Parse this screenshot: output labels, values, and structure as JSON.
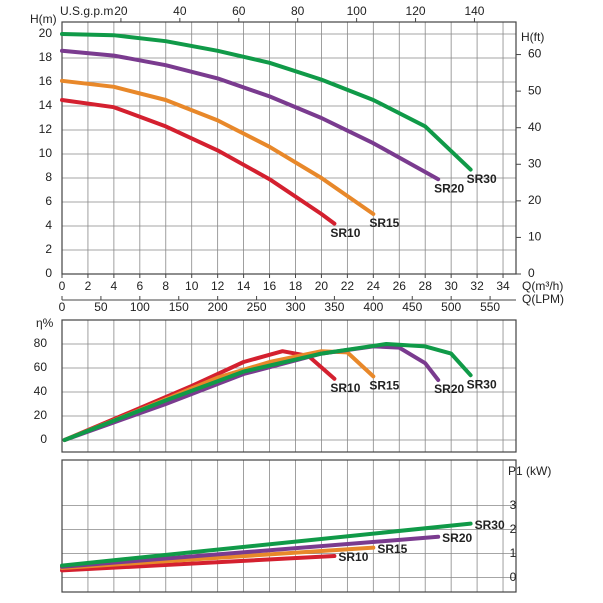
{
  "chart_data": [
    {
      "type": "line",
      "ylabel": "H(m)",
      "y2label": "H(ft)",
      "xlabel": "Q(m³/h)",
      "x2label": "U.S.g.p.m",
      "x3label": "Q(LPM)",
      "xlim": [
        0,
        35
      ],
      "xticks": [
        0,
        2,
        4,
        6,
        8,
        10,
        12,
        14,
        16,
        18,
        20,
        22,
        24,
        26,
        28,
        30,
        32,
        34
      ],
      "x2lim": [
        0,
        154.1
      ],
      "x2ticks": [
        20,
        40,
        60,
        80,
        100,
        120,
        140
      ],
      "x3lim": [
        0,
        583.3
      ],
      "x3ticks": [
        0,
        50,
        100,
        150,
        200,
        250,
        300,
        350,
        400,
        450,
        500,
        550
      ],
      "ylim": [
        0,
        21
      ],
      "yticks": [
        0,
        2,
        4,
        6,
        8,
        10,
        12,
        14,
        16,
        18,
        20
      ],
      "y2lim": [
        0,
        68.9
      ],
      "y2ticks": [
        0,
        10,
        20,
        30,
        40,
        50,
        60
      ],
      "grid": true,
      "series": [
        {
          "name": "SR10",
          "color": "#d4202f",
          "x": [
            0,
            4,
            8,
            12,
            16,
            20,
            21
          ],
          "values": [
            14.5,
            13.9,
            12.3,
            10.3,
            7.9,
            5.0,
            4.2
          ]
        },
        {
          "name": "SR15",
          "color": "#e8882a",
          "x": [
            0,
            4,
            8,
            12,
            16,
            20,
            24
          ],
          "values": [
            16.1,
            15.6,
            14.5,
            12.8,
            10.6,
            8.0,
            5.0
          ]
        },
        {
          "name": "SR20",
          "color": "#7a3b8f",
          "x": [
            0,
            4,
            8,
            12,
            16,
            20,
            24,
            28,
            29
          ],
          "values": [
            18.6,
            18.2,
            17.4,
            16.3,
            14.8,
            13.0,
            10.9,
            8.5,
            7.9
          ]
        },
        {
          "name": "SR30",
          "color": "#109a48",
          "x": [
            0,
            4,
            8,
            12,
            16,
            20,
            24,
            28,
            31.5
          ],
          "values": [
            20.0,
            19.9,
            19.4,
            18.6,
            17.6,
            16.2,
            14.5,
            12.3,
            8.7
          ]
        }
      ]
    },
    {
      "type": "line",
      "ylabel": "η%",
      "xlim": [
        0,
        35
      ],
      "xticks": [
        0,
        2,
        4,
        6,
        8,
        10,
        12,
        14,
        16,
        18,
        20,
        22,
        24,
        26,
        28,
        30,
        32,
        34
      ],
      "ylim": [
        -10,
        100
      ],
      "yticks": [
        0,
        20,
        40,
        60,
        80
      ],
      "grid": true,
      "series": [
        {
          "name": "SR10",
          "color": "#d4202f",
          "x": [
            0.2,
            5,
            10,
            14,
            17,
            19,
            21
          ],
          "values": [
            0,
            22,
            45,
            65,
            74,
            70,
            51
          ]
        },
        {
          "name": "SR15",
          "color": "#e8882a",
          "x": [
            0.2,
            6,
            12,
            16,
            20,
            22,
            24
          ],
          "values": [
            0,
            25,
            52,
            65,
            74,
            73,
            53
          ]
        },
        {
          "name": "SR20",
          "color": "#7a3b8f",
          "x": [
            0.2,
            8,
            14,
            20,
            24,
            26,
            28,
            29
          ],
          "values": [
            0,
            30,
            55,
            72,
            78,
            77,
            64,
            50
          ]
        },
        {
          "name": "SR30",
          "color": "#109a48",
          "x": [
            0.2,
            8,
            14,
            20,
            25,
            28,
            30,
            31.5
          ],
          "values": [
            0,
            33,
            57,
            72,
            80,
            78,
            72,
            54
          ]
        }
      ]
    },
    {
      "type": "line",
      "ylabel": "P1 (kW)",
      "xlim": [
        0,
        35
      ],
      "xticks": [
        0,
        2,
        4,
        6,
        8,
        10,
        12,
        14,
        16,
        18,
        20,
        22,
        24,
        26,
        28,
        30,
        32,
        34
      ],
      "ylim": [
        -0.6,
        4.9
      ],
      "yticks": [
        0,
        1,
        2,
        3
      ],
      "grid": true,
      "series": [
        {
          "name": "SR10",
          "color": "#d4202f",
          "x": [
            0,
            21
          ],
          "values": [
            0.3,
            0.9
          ]
        },
        {
          "name": "SR15",
          "color": "#e8882a",
          "x": [
            0,
            24
          ],
          "values": [
            0.4,
            1.25
          ]
        },
        {
          "name": "SR20",
          "color": "#7a3b8f",
          "x": [
            0,
            29
          ],
          "values": [
            0.45,
            1.7
          ]
        },
        {
          "name": "SR30",
          "color": "#109a48",
          "x": [
            0,
            31.5
          ],
          "values": [
            0.5,
            2.25
          ]
        }
      ]
    }
  ]
}
